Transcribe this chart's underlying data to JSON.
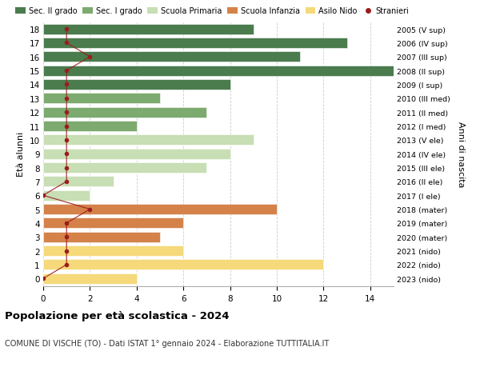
{
  "ages": [
    18,
    17,
    16,
    15,
    14,
    13,
    12,
    11,
    10,
    9,
    8,
    7,
    6,
    5,
    4,
    3,
    2,
    1,
    0
  ],
  "years": [
    "2005 (V sup)",
    "2006 (IV sup)",
    "2007 (III sup)",
    "2008 (II sup)",
    "2009 (I sup)",
    "2010 (III med)",
    "2011 (II med)",
    "2012 (I med)",
    "2013 (V ele)",
    "2014 (IV ele)",
    "2015 (III ele)",
    "2016 (II ele)",
    "2017 (I ele)",
    "2018 (mater)",
    "2019 (mater)",
    "2020 (mater)",
    "2021 (nido)",
    "2022 (nido)",
    "2023 (nido)"
  ],
  "values": [
    9,
    13,
    11,
    15,
    8,
    5,
    7,
    4,
    9,
    8,
    7,
    3,
    2,
    10,
    6,
    5,
    6,
    12,
    4
  ],
  "stranieri": [
    1,
    1,
    2,
    1,
    1,
    1,
    1,
    1,
    1,
    1,
    1,
    1,
    0,
    2,
    1,
    1,
    1,
    1,
    0
  ],
  "bar_colors": [
    "#4a7c4e",
    "#4a7c4e",
    "#4a7c4e",
    "#4a7c4e",
    "#4a7c4e",
    "#7daa6e",
    "#7daa6e",
    "#7daa6e",
    "#c8deb4",
    "#c8deb4",
    "#c8deb4",
    "#c8deb4",
    "#c8deb4",
    "#d4824a",
    "#d4824a",
    "#d4824a",
    "#f5d97a",
    "#f5d97a",
    "#f5d97a"
  ],
  "legend_items": [
    {
      "label": "Sec. II grado",
      "color": "#4a7c4e"
    },
    {
      "label": "Sec. I grado",
      "color": "#7daa6e"
    },
    {
      "label": "Scuola Primaria",
      "color": "#c8deb4"
    },
    {
      "label": "Scuola Infanzia",
      "color": "#d4824a"
    },
    {
      "label": "Asilo Nido",
      "color": "#f5d97a"
    },
    {
      "label": "Stranieri",
      "color": "#9b1c1c"
    }
  ],
  "stranieri_color": "#9b1c1c",
  "xlim": [
    0,
    15
  ],
  "xticks": [
    0,
    2,
    4,
    6,
    8,
    10,
    12,
    14
  ],
  "title_main": "Popolazione per età scolastica - 2024",
  "title_sub": "COMUNE DI VISCHE (TO) - Dati ISTAT 1° gennaio 2024 - Elaborazione TUTTITALIA.IT",
  "ylabel_left": "Età alunni",
  "ylabel_right": "Anni di nascita",
  "bg_color": "#ffffff",
  "bar_height": 0.75
}
